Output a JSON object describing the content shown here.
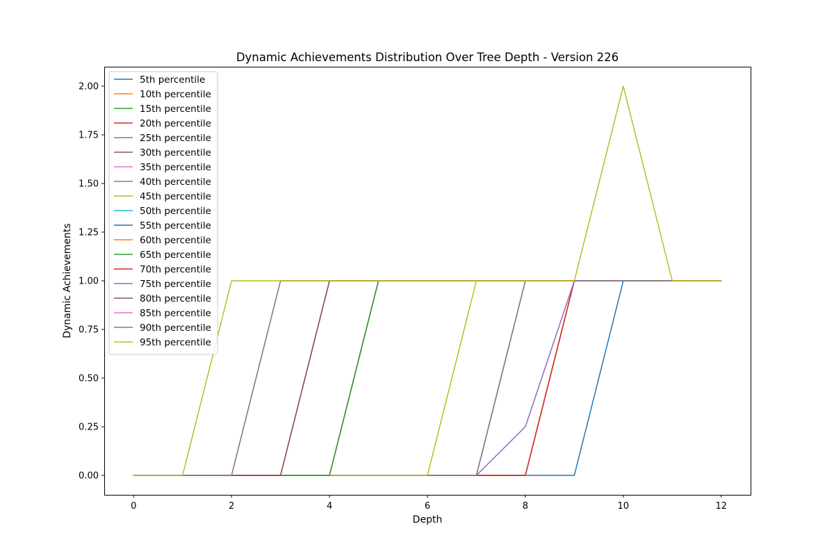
{
  "chart_data": {
    "type": "line",
    "title": "Dynamic Achievements Distribution Over Tree Depth - Version 226",
    "xlabel": "Depth",
    "ylabel": "Dynamic Achievements",
    "xlim": [
      -0.6,
      12.6
    ],
    "ylim": [
      -0.1,
      2.1
    ],
    "xticks": [
      0,
      2,
      4,
      6,
      8,
      10,
      12
    ],
    "xtick_labels": [
      "0",
      "2",
      "4",
      "6",
      "8",
      "10",
      "12"
    ],
    "yticks": [
      0.0,
      0.25,
      0.5,
      0.75,
      1.0,
      1.25,
      1.5,
      1.75,
      2.0
    ],
    "ytick_labels": [
      "0.00",
      "0.25",
      "0.50",
      "0.75",
      "1.00",
      "1.25",
      "1.50",
      "1.75",
      "2.00"
    ],
    "grid": false,
    "legend_position": "upper-left",
    "x": [
      0,
      1,
      2,
      3,
      4,
      5,
      6,
      7,
      8,
      9,
      10,
      11,
      12
    ],
    "series": [
      {
        "name": "5th percentile",
        "color": "#1f77b4",
        "values": [
          0,
          0,
          0,
          0,
          0,
          0,
          0,
          0,
          0,
          0,
          1,
          1,
          1
        ]
      },
      {
        "name": "10th percentile",
        "color": "#ff7f0e",
        "values": [
          0,
          0,
          0,
          0,
          0,
          0,
          0,
          0,
          0,
          1,
          1,
          1,
          1
        ]
      },
      {
        "name": "15th percentile",
        "color": "#2ca02c",
        "values": [
          0,
          0,
          0,
          0,
          0,
          0,
          0,
          0,
          0,
          1,
          1,
          1,
          1
        ]
      },
      {
        "name": "20th percentile",
        "color": "#d62728",
        "values": [
          0,
          0,
          0,
          0,
          0,
          0,
          0,
          0,
          0,
          1,
          1,
          1,
          1
        ]
      },
      {
        "name": "25th percentile",
        "color": "#9467bd",
        "values": [
          0,
          0,
          0,
          0,
          0,
          0,
          0,
          0,
          0.25,
          1,
          1,
          1,
          1
        ]
      },
      {
        "name": "30th percentile",
        "color": "#8c564b",
        "values": [
          0,
          0,
          0,
          0,
          0,
          0,
          0,
          0,
          1,
          1,
          1,
          1,
          1
        ]
      },
      {
        "name": "35th percentile",
        "color": "#e377c2",
        "values": [
          0,
          0,
          0,
          0,
          0,
          0,
          0,
          0,
          1,
          1,
          1,
          1,
          1
        ]
      },
      {
        "name": "40th percentile",
        "color": "#7f7f7f",
        "values": [
          0,
          0,
          0,
          0,
          0,
          0,
          0,
          0,
          1,
          1,
          1,
          1,
          1
        ]
      },
      {
        "name": "45th percentile",
        "color": "#bcbd22",
        "values": [
          0,
          0,
          0,
          0,
          0,
          0,
          0,
          1,
          1,
          1,
          1,
          1,
          1
        ]
      },
      {
        "name": "50th percentile",
        "color": "#17becf",
        "values": [
          0,
          0,
          0,
          0,
          0,
          1,
          1,
          1,
          1,
          1,
          1,
          1,
          1
        ]
      },
      {
        "name": "55th percentile",
        "color": "#1f77b4",
        "values": [
          0,
          0,
          0,
          0,
          0,
          1,
          1,
          1,
          1,
          1,
          1,
          1,
          1
        ]
      },
      {
        "name": "60th percentile",
        "color": "#ff7f0e",
        "values": [
          0,
          0,
          0,
          0,
          0,
          1,
          1,
          1,
          1,
          1,
          1,
          1,
          1
        ]
      },
      {
        "name": "65th percentile",
        "color": "#2ca02c",
        "values": [
          0,
          0,
          0,
          0,
          0,
          1,
          1,
          1,
          1,
          1,
          1,
          1,
          1
        ]
      },
      {
        "name": "70th percentile",
        "color": "#d62728",
        "values": [
          0,
          0,
          0,
          0,
          1,
          1,
          1,
          1,
          1,
          1,
          1,
          1,
          1
        ]
      },
      {
        "name": "75th percentile",
        "color": "#9467bd",
        "values": [
          0,
          0,
          0,
          0,
          1,
          1,
          1,
          1,
          1,
          1,
          1,
          1,
          1
        ]
      },
      {
        "name": "80th percentile",
        "color": "#8c564b",
        "values": [
          0,
          0,
          0,
          0,
          1,
          1,
          1,
          1,
          1,
          1,
          1,
          1,
          1
        ]
      },
      {
        "name": "85th percentile",
        "color": "#e377c2",
        "values": [
          0,
          0,
          0,
          1,
          1,
          1,
          1,
          1,
          1,
          1,
          1,
          1,
          1
        ]
      },
      {
        "name": "90th percentile",
        "color": "#7f7f7f",
        "values": [
          0,
          0,
          0,
          1,
          1,
          1,
          1,
          1,
          1,
          1,
          1,
          1,
          1
        ]
      },
      {
        "name": "95th percentile",
        "color": "#bcbd22",
        "values": [
          0,
          0,
          1,
          1,
          1,
          1,
          1,
          1,
          1,
          1,
          2,
          1,
          1
        ]
      }
    ]
  }
}
